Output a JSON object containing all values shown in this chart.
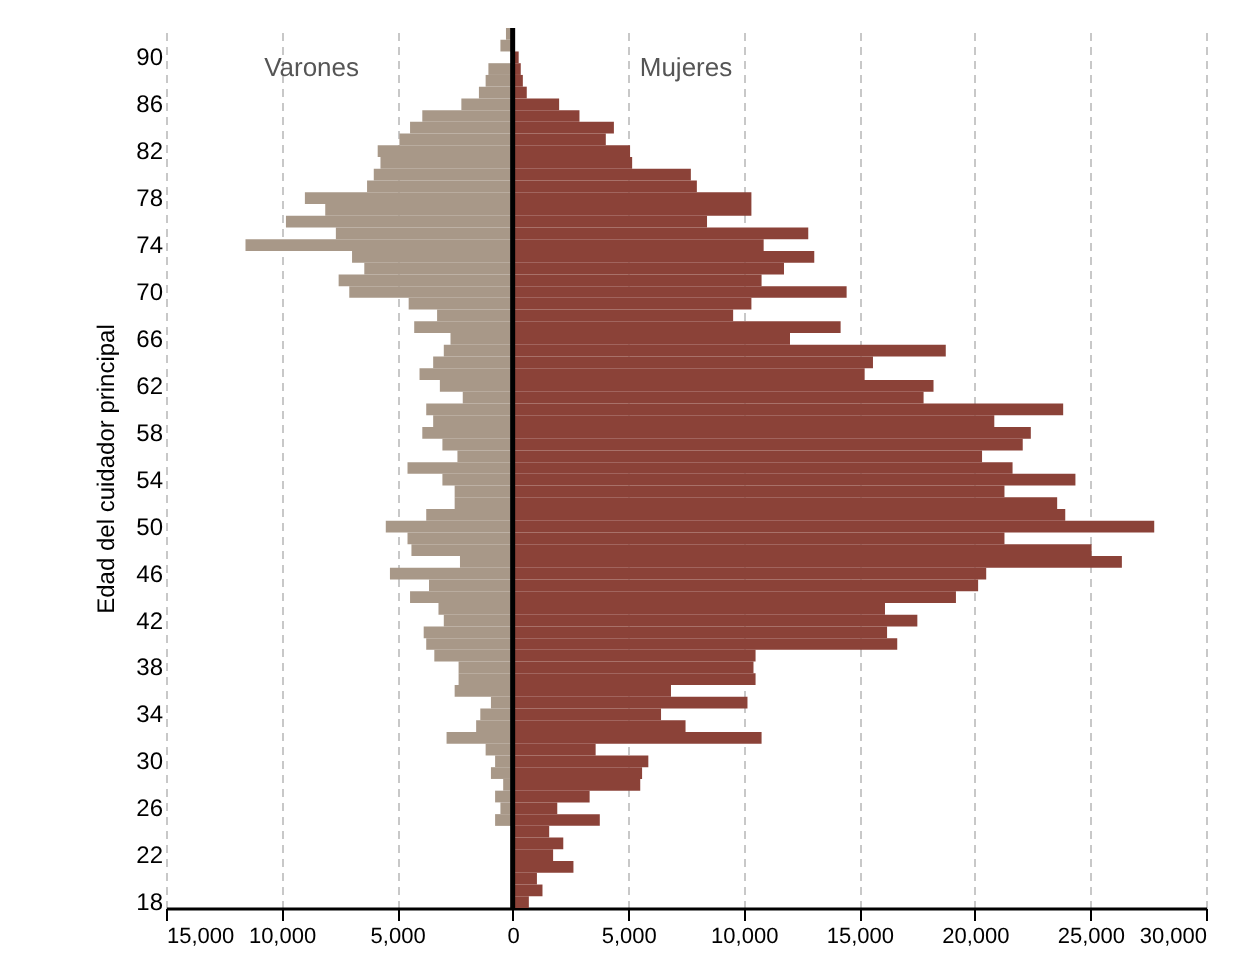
{
  "chart_data": {
    "type": "bar",
    "orientation": "horizontal",
    "ylabel": "Edad del cuidador principal",
    "categories": [
      null,
      null,
      "90",
      null,
      null,
      null,
      "86",
      null,
      null,
      null,
      "82",
      null,
      null,
      null,
      "78",
      null,
      null,
      null,
      "74",
      null,
      null,
      null,
      "70",
      null,
      null,
      null,
      "66",
      null,
      null,
      null,
      "62",
      null,
      null,
      null,
      "58",
      null,
      null,
      null,
      "54",
      null,
      null,
      null,
      "50",
      null,
      null,
      null,
      "46",
      null,
      null,
      null,
      "42",
      null,
      null,
      null,
      "38",
      null,
      null,
      null,
      "34",
      null,
      null,
      null,
      "30",
      null,
      null,
      null,
      "26",
      null,
      null,
      null,
      "22",
      null,
      null,
      null,
      "18"
    ],
    "series": [
      {
        "name": "Varones",
        "color": "#a89888",
        "values": [
          -290,
          -530,
          null,
          -1050,
          -1170,
          -1460,
          -2220,
          -3910,
          -4440,
          -4900,
          -5840,
          -5720,
          -6010,
          -6300,
          -8990,
          -8110,
          -9810,
          -7650,
          -11560,
          -6950,
          -6420,
          -7530,
          -7070,
          -4500,
          -3270,
          -4260,
          -2690,
          -2980,
          -3440,
          -4030,
          -3150,
          -2160,
          -3740,
          -3440,
          -3910,
          -3040,
          -2390,
          -4550,
          -3040,
          -2510,
          -2510,
          -3740,
          -5490,
          -4550,
          -4380,
          -2280,
          -5310,
          -3620,
          -4440,
          -3210,
          -2980,
          -3850,
          -3740,
          -3390,
          -2340,
          -2340,
          -2510,
          -940,
          -1400,
          -1580,
          -2860,
          -1170,
          -760,
          -940,
          -410,
          -760,
          -530,
          -760,
          0,
          null,
          0,
          0,
          0,
          0,
          0
        ]
      },
      {
        "name": "Mujeres",
        "color": "#8b4238",
        "values": [
          90,
          null,
          260,
          350,
          440,
          610,
          2010,
          2890,
          4380,
          4030,
          5080,
          5170,
          7710,
          7970,
          10330,
          10330,
          8410,
          12790,
          10860,
          13050,
          11740,
          10770,
          14450,
          10330,
          9540,
          14190,
          12000,
          18740,
          15590,
          15230,
          18210,
          17780,
          23820,
          20840,
          22420,
          22070,
          20310,
          21630,
          24350,
          21280,
          23560,
          23910,
          27760,
          21280,
          25050,
          26360,
          20490,
          20140,
          19180,
          16110,
          17510,
          16200,
          16640,
          10510,
          10420,
          10510,
          6850,
          10160,
          6420,
          7480,
          10770,
          3590,
          5870,
          5600,
          5520,
          3330,
          1930,
          3770,
          1580,
          2190,
          1750,
          2630,
          1050,
          1290,
          700
        ]
      }
    ],
    "xlim": [
      -15000,
      30000
    ],
    "xticks": [
      {
        "value": -15000,
        "label": "15,000"
      },
      {
        "value": -10000,
        "label": "10,000"
      },
      {
        "value": -5000,
        "label": "5,000"
      },
      0,
      {
        "value": 5000,
        "label": "5,000"
      },
      {
        "value": 10000,
        "label": "10,000"
      },
      {
        "value": 15000,
        "label": "15,000"
      },
      {
        "value": 20000,
        "label": "20,000"
      },
      {
        "value": 25000,
        "label": "25,000"
      },
      {
        "value": 30000,
        "label": "30,000"
      }
    ],
    "grid": "x",
    "legend": false,
    "stacked": true,
    "ref_lines": [
      {
        "axis": "x",
        "value": 0,
        "color": "#000000"
      }
    ]
  }
}
